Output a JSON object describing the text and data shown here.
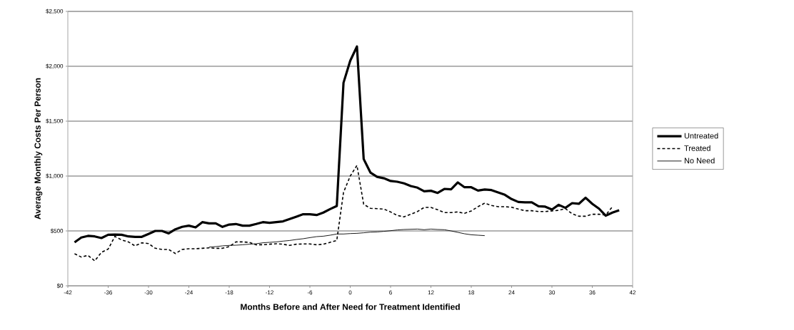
{
  "chart_data": {
    "type": "line",
    "xlabel": "Months Before and After Need for Treatment Identified",
    "ylabel": "Average Monthly Costs Per Person",
    "xlim": [
      -42,
      42
    ],
    "xticks": [
      -42,
      -36,
      -30,
      -24,
      -18,
      -12,
      -6,
      0,
      6,
      12,
      18,
      24,
      30,
      36,
      42
    ],
    "ylim": [
      0,
      2500
    ],
    "yticks": [
      {
        "value": 0,
        "label": "$0"
      },
      {
        "value": 500,
        "label": "$500"
      },
      {
        "value": 1000,
        "label": "$1,000"
      },
      {
        "value": 1500,
        "label": "$1,500"
      },
      {
        "value": 2000,
        "label": "$2,000"
      },
      {
        "value": 2500,
        "label": "$2,500"
      }
    ],
    "grid": "y",
    "legend": "right",
    "marker": "none",
    "series": [
      {
        "name": "Untreated",
        "color": "#000000",
        "line_style": "solid",
        "x": [
          -41,
          -40,
          -39,
          -38,
          -37,
          -36,
          -35,
          -34,
          -33,
          -32,
          -31,
          -30,
          -29,
          -28,
          -27,
          -26,
          -25,
          -24,
          -23,
          -22,
          -21,
          -20,
          -19,
          -18,
          -17,
          -16,
          -15,
          -14,
          -13,
          -12,
          -11,
          -10,
          -9,
          -8,
          -7,
          -6,
          -5,
          -4,
          -3,
          -2,
          -1,
          0,
          1,
          2,
          3,
          4,
          5,
          6,
          7,
          8,
          9,
          10,
          11,
          12,
          13,
          14,
          15,
          16,
          17,
          18,
          19,
          20,
          21,
          22,
          23,
          24,
          25,
          26,
          27,
          28,
          29,
          30,
          31,
          32,
          33,
          34,
          35,
          36,
          37,
          38,
          39,
          40
        ],
        "values": [
          396,
          440,
          455,
          450,
          435,
          465,
          467,
          465,
          450,
          446,
          446,
          472,
          500,
          500,
          478,
          515,
          537,
          548,
          532,
          580,
          569,
          569,
          537,
          558,
          563,
          548,
          548,
          563,
          580,
          574,
          580,
          587,
          608,
          630,
          652,
          652,
          645,
          667,
          699,
          727,
          1850,
          2050,
          2180,
          1155,
          1032,
          993,
          980,
          955,
          948,
          933,
          909,
          894,
          861,
          866,
          846,
          883,
          879,
          942,
          898,
          898,
          868,
          877,
          872,
          851,
          829,
          790,
          764,
          760,
          760,
          725,
          721,
          695,
          738,
          710,
          753,
          747,
          803,
          747,
          703,
          639,
          667,
          688
        ]
      },
      {
        "name": "Treated",
        "color": "#000000",
        "line_style": "dashed",
        "x": [
          -41,
          -40,
          -39,
          -38,
          -37,
          -36,
          -35,
          -34,
          -33,
          -32,
          -31,
          -30,
          -29,
          -28,
          -27,
          -26,
          -25,
          -24,
          -23,
          -22,
          -21,
          -20,
          -19,
          -18,
          -17,
          -16,
          -15,
          -14,
          -13,
          -12,
          -11,
          -10,
          -9,
          -8,
          -7,
          -6,
          -5,
          -4,
          -3,
          -2,
          -1,
          0,
          1,
          2,
          3,
          4,
          5,
          6,
          7,
          8,
          9,
          10,
          11,
          12,
          13,
          14,
          15,
          16,
          17,
          18,
          19,
          20,
          21,
          22,
          23,
          24,
          25,
          26,
          27,
          28,
          29,
          30,
          31,
          32,
          33,
          34,
          35,
          36,
          37,
          38,
          39
        ],
        "values": [
          292,
          262,
          277,
          227,
          305,
          335,
          450,
          418,
          400,
          364,
          392,
          385,
          342,
          331,
          331,
          294,
          331,
          338,
          338,
          342,
          346,
          342,
          342,
          357,
          400,
          400,
          396,
          374,
          374,
          379,
          383,
          379,
          368,
          379,
          381,
          381,
          374,
          379,
          396,
          413,
          851,
          1000,
          1097,
          742,
          706,
          703,
          699,
          673,
          641,
          628,
          652,
          677,
          714,
          714,
          693,
          667,
          667,
          673,
          660,
          682,
          721,
          753,
          732,
          721,
          721,
          716,
          699,
          684,
          684,
          677,
          677,
          682,
          688,
          703,
          656,
          634,
          634,
          652,
          652,
          645,
          721
        ]
      },
      {
        "name": "No Need",
        "color": "#000000",
        "line_style": "solid",
        "x": [
          -21,
          -20,
          -19,
          -18,
          -17,
          -16,
          -15,
          -14,
          -13,
          -12,
          -11,
          -10,
          -9,
          -8,
          -7,
          -6,
          -5,
          -4,
          -3,
          -2,
          -1,
          0,
          1,
          2,
          3,
          4,
          5,
          6,
          7,
          8,
          9,
          10,
          11,
          12,
          13,
          14,
          15,
          16,
          17,
          18,
          19,
          20
        ],
        "values": [
          353,
          357,
          364,
          368,
          370,
          374,
          379,
          383,
          392,
          396,
          400,
          407,
          413,
          422,
          429,
          439,
          448,
          452,
          461,
          472,
          472,
          476,
          478,
          483,
          489,
          491,
          496,
          502,
          509,
          513,
          515,
          517,
          511,
          517,
          513,
          511,
          500,
          487,
          474,
          465,
          461,
          457
        ]
      }
    ]
  }
}
